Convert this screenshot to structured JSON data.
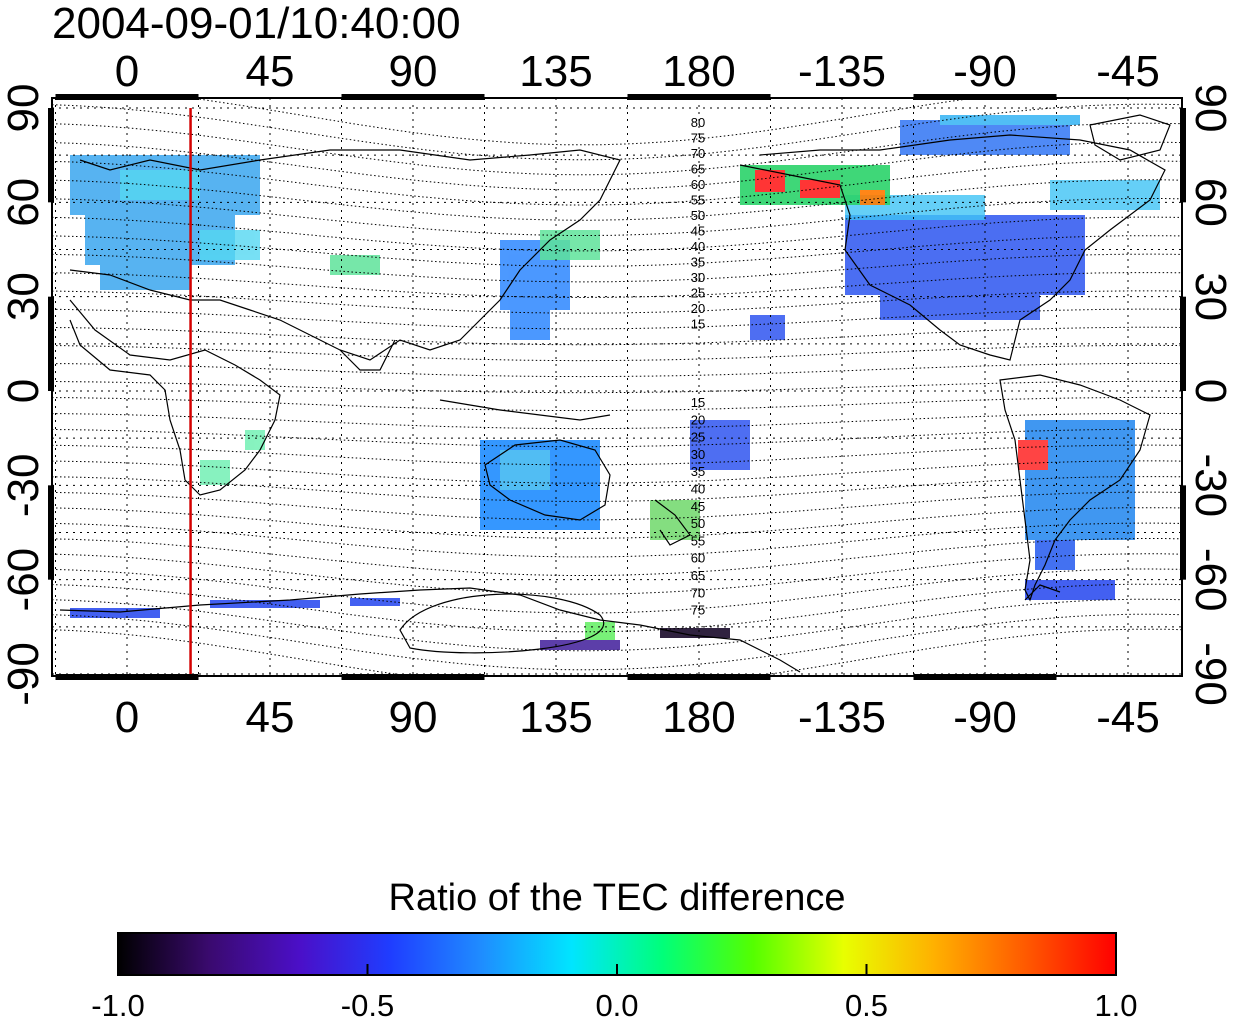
{
  "timestamp": "2004-09-01/10:40:00",
  "colorbar": {
    "title": "Ratio of the TEC difference",
    "ticks": [
      "-1.0",
      "-0.5",
      "0.0",
      "0.5",
      "1.0"
    ],
    "stops": [
      "#000000",
      "#3a0a6e",
      "#4b0fc8",
      "#1f3dff",
      "#1f8cff",
      "#00e5ff",
      "#00ff7a",
      "#54ff00",
      "#e8ff00",
      "#ffb000",
      "#ff5a00",
      "#ff0000"
    ]
  },
  "map": {
    "lon_ticks": [
      "0",
      "45",
      "90",
      "135",
      "180",
      "-135",
      "-90",
      "-45"
    ],
    "lat_ticks": [
      "90",
      "60",
      "30",
      "0",
      "-30",
      "-60",
      "-90"
    ],
    "marker_lon_deg": 20,
    "marker_color": "#d40000",
    "ref_contours_north": [
      "80",
      "75",
      "70",
      "65",
      "60",
      "55",
      "50",
      "45",
      "40",
      "35",
      "30",
      "25",
      "20",
      "15"
    ],
    "ref_contours_south": [
      "15",
      "20",
      "25",
      "30",
      "35",
      "40",
      "45",
      "50",
      "55",
      "60",
      "65",
      "70",
      "75"
    ]
  }
}
